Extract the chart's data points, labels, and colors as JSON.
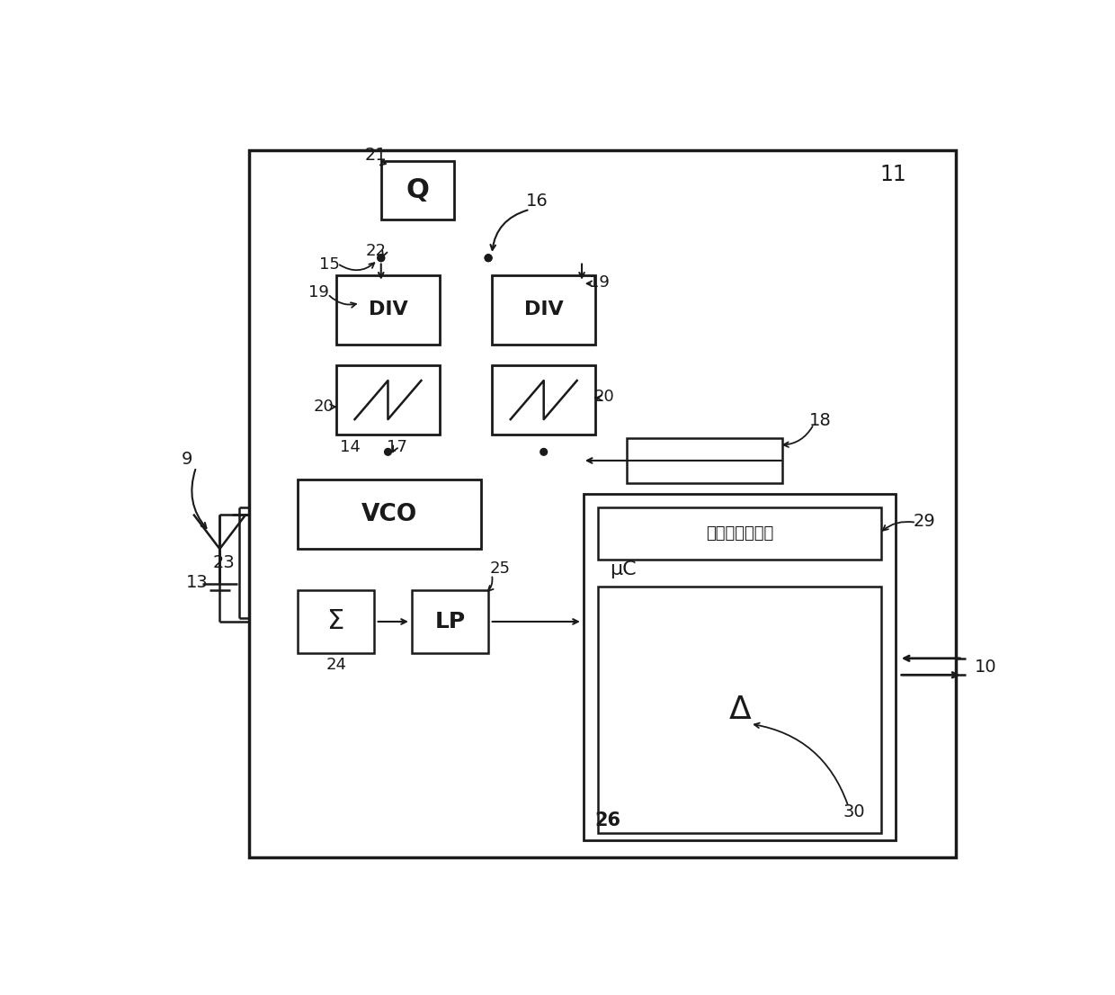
{
  "fig_width": 12.4,
  "fig_height": 11.06,
  "bg_color": "#ffffff",
  "lc": "#1a1a1a",
  "label_11": "11",
  "label_9": "9",
  "label_10": "10",
  "label_13": "13",
  "label_23": "23",
  "label_21": "21",
  "label_Q": "Q",
  "label_16": "16",
  "label_15": "15",
  "label_22": "22",
  "label_19a": "19",
  "label_19b": "19",
  "label_DIV1": "DIV",
  "label_DIV2": "DIV",
  "label_20a": "20",
  "label_20b": "20",
  "label_14": "14",
  "label_17": "17",
  "label_VCO": "VCO",
  "label_18": "18",
  "label_SUM": "Σ",
  "label_LP": "LP",
  "label_25": "25",
  "label_24": "24",
  "label_26": "26",
  "label_29": "29",
  "label_30": "30",
  "label_uC": "μC",
  "label_bgsim": "背景信号模拟器",
  "label_delta": "Δ"
}
